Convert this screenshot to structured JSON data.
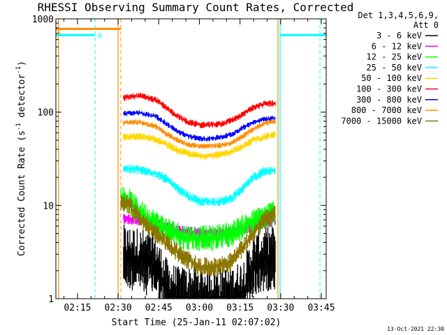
{
  "chart_data": {
    "type": "line",
    "title": "RHESSI Observing Summary Count Rates, Corrected",
    "xlabel": "Start Time (25-Jan-11 02:07:02)",
    "ylabel": "Corrected Count Rate (s",
    "ylabel_sup1": "-1",
    "ylabel_mid": " detector",
    "ylabel_sup2": "-1",
    "ylabel_end": ")",
    "yscale": "log",
    "ylim": [
      1,
      1000
    ],
    "xlim_minutes": [
      7.03,
      106.8
    ],
    "x_ticks": [
      {
        "m": 15,
        "label": "02:15"
      },
      {
        "m": 30,
        "label": "02:30"
      },
      {
        "m": 45,
        "label": "02:45"
      },
      {
        "m": 60,
        "label": "03:00"
      },
      {
        "m": 75,
        "label": "03:15"
      },
      {
        "m": 90,
        "label": "03:30"
      },
      {
        "m": 105,
        "label": "03:45"
      }
    ],
    "y_ticks": [
      {
        "v": 1,
        "label": "1"
      },
      {
        "v": 10,
        "label": "10"
      },
      {
        "v": 100,
        "label": "100"
      },
      {
        "v": 1000,
        "label": "1000"
      }
    ],
    "legend_header": [
      "Det 1,3,4,5,6,9,",
      "Att 0"
    ],
    "legend_position": "right",
    "series": [
      {
        "name": "3 - 6 keV",
        "color": "#000000",
        "noise": 0.35,
        "points": [
          [
            32,
            2.8
          ],
          [
            38,
            2.6
          ],
          [
            44,
            2.2
          ],
          [
            48,
            1.2
          ],
          [
            52,
            1.0
          ],
          [
            56,
            1.0
          ],
          [
            60,
            1.0
          ],
          [
            64,
            1.0
          ],
          [
            68,
            1.0
          ],
          [
            72,
            1.0
          ],
          [
            76,
            1.2
          ],
          [
            80,
            2.2
          ],
          [
            84,
            2.6
          ],
          [
            88,
            2.8
          ]
        ]
      },
      {
        "name": "6 - 12 keV",
        "color": "#ff00ff",
        "noise": 0.06,
        "points": [
          [
            32,
            7.2
          ],
          [
            38,
            7.0
          ],
          [
            44,
            6.4
          ],
          [
            50,
            5.6
          ],
          [
            56,
            5.2
          ],
          [
            62,
            5.0
          ],
          [
            68,
            5.1
          ],
          [
            74,
            5.4
          ],
          [
            80,
            6.0
          ],
          [
            86,
            6.6
          ],
          [
            88,
            7.0
          ]
        ]
      },
      {
        "name": "12 - 25 keV",
        "color": "#00ff00",
        "noise": 0.14,
        "points": [
          [
            31,
            12
          ],
          [
            34,
            11
          ],
          [
            38,
            8.5
          ],
          [
            42,
            7.0
          ],
          [
            48,
            5.5
          ],
          [
            54,
            4.6
          ],
          [
            60,
            4.4
          ],
          [
            66,
            4.5
          ],
          [
            72,
            5.0
          ],
          [
            78,
            6.2
          ],
          [
            84,
            7.5
          ],
          [
            88,
            8.5
          ]
        ]
      },
      {
        "name": "25 - 50 keV",
        "color": "#00ffff",
        "noise": 0.05,
        "points": [
          [
            32,
            25
          ],
          [
            38,
            24
          ],
          [
            44,
            22
          ],
          [
            48,
            19
          ],
          [
            52,
            15
          ],
          [
            56,
            12.5
          ],
          [
            60,
            11
          ],
          [
            64,
            11
          ],
          [
            68,
            11
          ],
          [
            72,
            12
          ],
          [
            76,
            15
          ],
          [
            80,
            20
          ],
          [
            84,
            23.5
          ],
          [
            88,
            24
          ]
        ]
      },
      {
        "name": "50 - 100 keV",
        "color": "#ffd700",
        "noise": 0.04,
        "points": [
          [
            32,
            54
          ],
          [
            38,
            55
          ],
          [
            44,
            51
          ],
          [
            48,
            45
          ],
          [
            52,
            39
          ],
          [
            56,
            36
          ],
          [
            60,
            34
          ],
          [
            64,
            34
          ],
          [
            68,
            35
          ],
          [
            72,
            38
          ],
          [
            76,
            43
          ],
          [
            80,
            50
          ],
          [
            84,
            54
          ],
          [
            88,
            58
          ]
        ]
      },
      {
        "name": "100 - 300 keV",
        "color": "#ff0000",
        "noise": 0.035,
        "points": [
          [
            32,
            142
          ],
          [
            38,
            150
          ],
          [
            44,
            135
          ],
          [
            48,
            110
          ],
          [
            52,
            90
          ],
          [
            56,
            78
          ],
          [
            60,
            73
          ],
          [
            64,
            73
          ],
          [
            68,
            75
          ],
          [
            72,
            82
          ],
          [
            76,
            95
          ],
          [
            80,
            112
          ],
          [
            84,
            122
          ],
          [
            88,
            125
          ]
        ]
      },
      {
        "name": "300 - 800 keV",
        "color": "#0000ff",
        "noise": 0.03,
        "points": [
          [
            32,
            97
          ],
          [
            38,
            98
          ],
          [
            44,
            90
          ],
          [
            48,
            75
          ],
          [
            52,
            62
          ],
          [
            56,
            55
          ],
          [
            60,
            52
          ],
          [
            64,
            52
          ],
          [
            68,
            54
          ],
          [
            72,
            58
          ],
          [
            76,
            68
          ],
          [
            80,
            78
          ],
          [
            84,
            84
          ],
          [
            88,
            86
          ]
        ]
      },
      {
        "name": "800 - 7000 keV",
        "color": "#ff8c00",
        "noise": 0.03,
        "points": [
          [
            32,
            77
          ],
          [
            38,
            78
          ],
          [
            44,
            70
          ],
          [
            48,
            58
          ],
          [
            52,
            50
          ],
          [
            56,
            45
          ],
          [
            60,
            43
          ],
          [
            64,
            43
          ],
          [
            68,
            44
          ],
          [
            72,
            47
          ],
          [
            76,
            55
          ],
          [
            80,
            66
          ],
          [
            84,
            76
          ],
          [
            88,
            80
          ]
        ]
      },
      {
        "name": "7000 - 15000 keV",
        "color": "#8b7500",
        "noise": 0.1,
        "points": [
          [
            31,
            11
          ],
          [
            34,
            10
          ],
          [
            38,
            7.5
          ],
          [
            42,
            5.5
          ],
          [
            46,
            4.5
          ],
          [
            50,
            3.5
          ],
          [
            54,
            2.8
          ],
          [
            60,
            2.2
          ],
          [
            66,
            2.2
          ],
          [
            72,
            2.5
          ],
          [
            76,
            3.5
          ],
          [
            80,
            5
          ],
          [
            84,
            7
          ],
          [
            88,
            8.5
          ]
        ]
      }
    ],
    "dashed_markers": [
      {
        "m": 21.5,
        "color": "#00ffff"
      },
      {
        "m": 31.0,
        "color": "#ff8c00"
      },
      {
        "m": 104.5,
        "color": "#00ffff"
      }
    ],
    "solid_markers": [
      {
        "m": 8.0,
        "color": "#ff8c00"
      },
      {
        "m": 30.0,
        "color": "#ff8c00"
      },
      {
        "m": 89.8,
        "color": "#00ffff"
      },
      {
        "m": 89.0,
        "color": "#ff8c00"
      }
    ],
    "flag_bars": [
      {
        "from": 7.03,
        "to": 31.0,
        "value": 780,
        "color": "#ff8c00"
      },
      {
        "from": 7.03,
        "to": 21.5,
        "value": 670,
        "color": "#00ffff",
        "label": "N"
      },
      {
        "from": 89.8,
        "to": 106.8,
        "value": 670,
        "color": "#00ffff"
      }
    ],
    "flag_letter_left": "S",
    "timestamp": "13-Oct-2021 22:30"
  }
}
